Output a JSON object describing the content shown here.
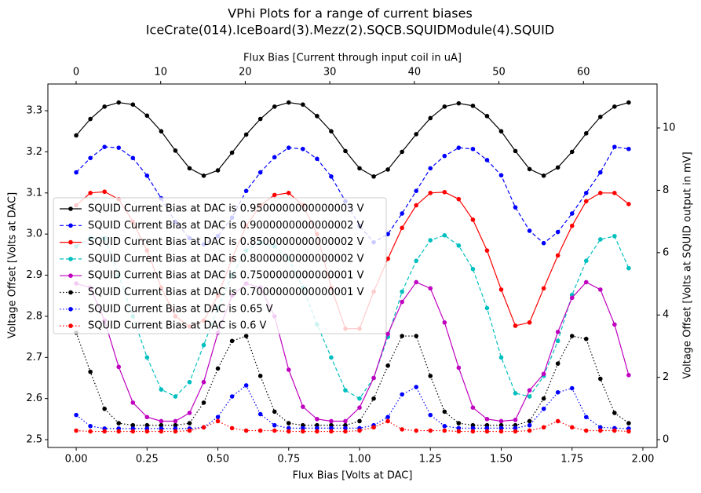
{
  "chart_data": {
    "type": "line",
    "title": "VPhi Plots for a range of current biases",
    "subtitle": "IceCrate(014).IceBoard(3).Mezz(2).SQCB.SQUIDModule(4).SQUID",
    "x_label": "Flux Bias [Volts at DAC]",
    "y_label": "Voltage Offset [Volts at DAC]",
    "x2_label": "Flux Bias [Current through input coil in uA]",
    "y2_label": "Voltage Offset [Volts at SQUID output in mV]",
    "x": [
      0,
      0.05,
      0.1,
      0.15,
      0.2,
      0.25,
      0.3,
      0.35,
      0.4,
      0.45,
      0.5,
      0.55,
      0.6,
      0.65,
      0.7,
      0.75,
      0.8,
      0.85,
      0.9,
      0.95,
      1.0,
      1.05,
      1.1,
      1.15,
      1.2,
      1.25,
      1.3,
      1.35,
      1.4,
      1.45,
      1.5,
      1.55,
      1.6,
      1.65,
      1.7,
      1.75,
      1.8,
      1.85,
      1.9,
      1.95
    ],
    "xlim": [
      -0.1,
      2.05
    ],
    "xticks": [
      {
        "value": 0,
        "label": "0.00"
      },
      {
        "value": 0.25,
        "label": "0.25"
      },
      {
        "value": 0.5,
        "label": "0.50"
      },
      {
        "value": 0.75,
        "label": "0.75"
      },
      {
        "value": 1,
        "label": "1.00"
      },
      {
        "value": 1.25,
        "label": "1.25"
      },
      {
        "value": 1.5,
        "label": "1.50"
      },
      {
        "value": 1.75,
        "label": "1.75"
      },
      {
        "value": 2,
        "label": "2.00"
      }
    ],
    "ylim": [
      2.481,
      3.365
    ],
    "yticks": [
      2.5,
      2.6,
      2.7,
      2.8,
      2.9,
      {
        "value": 3,
        "label": "3.0"
      },
      3.1,
      3.2,
      3.3
    ],
    "x2lim": [
      -3.34,
      68.7
    ],
    "x2ticks": [
      0,
      10,
      20,
      30,
      40,
      50,
      60
    ],
    "y2lim": [
      -0.25,
      11.41
    ],
    "y2ticks": [
      0,
      2,
      4,
      6,
      8,
      10
    ],
    "legend": "upper left",
    "series": [
      {
        "name": "SQUID Current Bias at DAC is 0.9500000000000003 V",
        "color": "#000000",
        "linestyle": "solid",
        "values": [
          3.24,
          3.28,
          3.31,
          3.32,
          3.315,
          3.288,
          3.25,
          3.203,
          3.16,
          3.142,
          3.155,
          3.198,
          3.242,
          3.28,
          3.31,
          3.32,
          3.315,
          3.287,
          3.25,
          3.202,
          3.16,
          3.14,
          3.157,
          3.2,
          3.243,
          3.282,
          3.31,
          3.318,
          3.312,
          3.287,
          3.25,
          3.202,
          3.158,
          3.142,
          3.162,
          3.2,
          3.245,
          3.285,
          3.31,
          3.32
        ]
      },
      {
        "name": "SQUID Current Bias at DAC is 0.9000000000000002 V",
        "color": "#0000ff",
        "linestyle": "dashed",
        "values": [
          3.15,
          3.185,
          3.212,
          3.21,
          3.185,
          3.142,
          3.087,
          3.03,
          2.99,
          2.975,
          2.995,
          3.04,
          3.105,
          3.15,
          3.187,
          3.21,
          3.207,
          3.183,
          3.14,
          3.08,
          3.02,
          2.98,
          3.0,
          3.05,
          3.105,
          3.16,
          3.19,
          3.21,
          3.207,
          3.18,
          3.143,
          3.065,
          3.008,
          2.978,
          3.005,
          3.05,
          3.1,
          3.15,
          3.212,
          3.207
        ]
      },
      {
        "name": "SQUID Current Bias at DAC is 0.8500000000000002 V",
        "color": "#ff0000",
        "linestyle": "solid",
        "values": [
          3.07,
          3.1,
          3.103,
          3.085,
          3.03,
          2.96,
          2.87,
          2.8,
          2.775,
          2.79,
          2.85,
          2.94,
          3.02,
          3.07,
          3.095,
          3.1,
          3.07,
          3.0,
          2.87,
          2.77,
          2.77,
          2.86,
          2.94,
          3.015,
          3.07,
          3.1,
          3.102,
          3.085,
          3.035,
          2.96,
          2.865,
          2.777,
          2.785,
          2.868,
          2.948,
          3.02,
          3.08,
          3.1,
          3.1,
          3.073
        ]
      },
      {
        "name": "SQUID Current Bias at DAC is 0.8000000000000002 V",
        "color": "#00bfbf",
        "linestyle": "dashed",
        "values": [
          2.97,
          2.99,
          2.99,
          2.9,
          2.8,
          2.7,
          2.622,
          2.605,
          2.64,
          2.73,
          2.82,
          2.9,
          2.96,
          2.98,
          2.97,
          2.94,
          2.87,
          2.78,
          2.7,
          2.62,
          2.6,
          2.65,
          2.75,
          2.86,
          2.935,
          2.985,
          2.997,
          2.972,
          2.915,
          2.82,
          2.7,
          2.613,
          2.605,
          2.655,
          2.74,
          2.852,
          2.935,
          2.987,
          2.995,
          2.917
        ]
      },
      {
        "name": "SQUID Current Bias at DAC is 0.7500000000000001 V",
        "color": "#bf00bf",
        "linestyle": "solid",
        "values": [
          2.88,
          2.87,
          2.79,
          2.677,
          2.59,
          2.555,
          2.545,
          2.545,
          2.565,
          2.64,
          2.76,
          2.85,
          2.88,
          2.87,
          2.8,
          2.67,
          2.58,
          2.55,
          2.545,
          2.545,
          2.578,
          2.65,
          2.757,
          2.835,
          2.883,
          2.868,
          2.785,
          2.675,
          2.578,
          2.55,
          2.545,
          2.548,
          2.62,
          2.66,
          2.762,
          2.845,
          2.883,
          2.865,
          2.78,
          2.657
        ]
      },
      {
        "name": "SQUID Current Bias at DAC is 0.7000000000000001 V",
        "color": "#000000",
        "linestyle": "dotted",
        "values": [
          2.76,
          2.665,
          2.575,
          2.54,
          2.535,
          2.535,
          2.535,
          2.535,
          2.54,
          2.59,
          2.673,
          2.74,
          2.752,
          2.655,
          2.568,
          2.54,
          2.535,
          2.535,
          2.535,
          2.535,
          2.545,
          2.6,
          2.68,
          2.752,
          2.752,
          2.655,
          2.568,
          2.54,
          2.535,
          2.535,
          2.535,
          2.535,
          2.545,
          2.6,
          2.685,
          2.752,
          2.745,
          2.648,
          2.565,
          2.54
        ]
      },
      {
        "name": "SQUID Current Bias at DAC is 0.65 V",
        "color": "#0000ff",
        "linestyle": "dotted",
        "values": [
          2.56,
          2.533,
          2.527,
          2.527,
          2.527,
          2.527,
          2.527,
          2.527,
          2.527,
          2.53,
          2.555,
          2.605,
          2.632,
          2.562,
          2.535,
          2.528,
          2.528,
          2.528,
          2.528,
          2.528,
          2.528,
          2.535,
          2.555,
          2.61,
          2.628,
          2.56,
          2.533,
          2.528,
          2.528,
          2.528,
          2.528,
          2.528,
          2.535,
          2.575,
          2.615,
          2.625,
          2.555,
          2.53,
          2.528,
          2.527
        ]
      },
      {
        "name": "SQUID Current Bias at DAC is 0.6 V",
        "color": "#ff0000",
        "linestyle": "dotted",
        "values": [
          2.522,
          2.52,
          2.52,
          2.52,
          2.52,
          2.52,
          2.52,
          2.52,
          2.522,
          2.53,
          2.545,
          2.528,
          2.522,
          2.522,
          2.522,
          2.52,
          2.52,
          2.52,
          2.52,
          2.52,
          2.522,
          2.53,
          2.545,
          2.525,
          2.522,
          2.522,
          2.522,
          2.52,
          2.52,
          2.52,
          2.52,
          2.52,
          2.522,
          2.53,
          2.545,
          2.53,
          2.522,
          2.522,
          2.522,
          2.52
        ]
      }
    ]
  }
}
